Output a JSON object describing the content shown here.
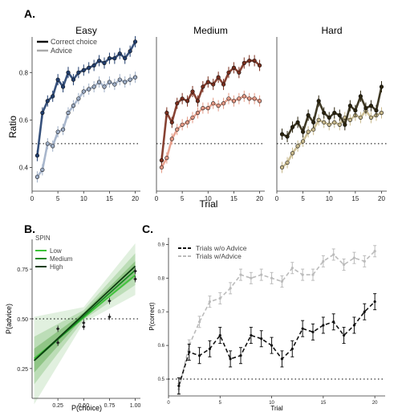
{
  "panel_labels": {
    "a": "A.",
    "b": "B.",
    "c": "C."
  },
  "chart_data": [
    {
      "panel": "A",
      "type": "line",
      "ylabel": "Ratio",
      "xlabel": "Trial",
      "xlim": [
        0,
        21
      ],
      "ylim": [
        0.3,
        0.95
      ],
      "xticks": [
        "0",
        "5",
        "10",
        "15",
        "20"
      ],
      "yticks": [
        "0.4",
        "0.6",
        "0.8"
      ],
      "chance_line": 0.5,
      "legend": [
        "Correct choice",
        "Advice"
      ],
      "subplots": [
        {
          "title": "Easy",
          "color_choice": "#213e6e",
          "color_advice": "#9eaec6",
          "x": [
            1,
            2,
            3,
            4,
            5,
            6,
            7,
            8,
            9,
            10,
            11,
            12,
            13,
            14,
            15,
            16,
            17,
            18,
            19,
            20
          ],
          "correct_choice": [
            0.45,
            0.63,
            0.68,
            0.7,
            0.77,
            0.74,
            0.8,
            0.77,
            0.8,
            0.81,
            0.82,
            0.83,
            0.85,
            0.84,
            0.86,
            0.86,
            0.88,
            0.86,
            0.89,
            0.93
          ],
          "advice": [
            0.36,
            0.39,
            0.5,
            0.49,
            0.55,
            0.56,
            0.63,
            0.66,
            0.69,
            0.72,
            0.73,
            0.74,
            0.76,
            0.74,
            0.76,
            0.75,
            0.77,
            0.76,
            0.77,
            0.78
          ]
        },
        {
          "title": "Medium",
          "color_choice": "#7a2e1d",
          "color_advice": "#e59a86",
          "x": [
            1,
            2,
            3,
            4,
            5,
            6,
            7,
            8,
            9,
            10,
            11,
            12,
            13,
            14,
            15,
            16,
            17,
            18,
            19,
            20
          ],
          "correct_choice": [
            0.43,
            0.63,
            0.59,
            0.67,
            0.69,
            0.68,
            0.72,
            0.68,
            0.74,
            0.76,
            0.75,
            0.78,
            0.75,
            0.8,
            0.82,
            0.8,
            0.84,
            0.85,
            0.85,
            0.83
          ],
          "advice": [
            0.4,
            0.44,
            0.52,
            0.56,
            0.58,
            0.59,
            0.61,
            0.63,
            0.65,
            0.65,
            0.67,
            0.66,
            0.67,
            0.69,
            0.68,
            0.69,
            0.7,
            0.69,
            0.69,
            0.68
          ]
        },
        {
          "title": "Hard",
          "color_choice": "#2a230d",
          "color_advice": "#c8b98c",
          "x": [
            1,
            2,
            3,
            4,
            5,
            6,
            7,
            8,
            9,
            10,
            11,
            12,
            13,
            14,
            15,
            16,
            17,
            18,
            19,
            20
          ],
          "correct_choice": [
            0.54,
            0.53,
            0.57,
            0.59,
            0.55,
            0.62,
            0.59,
            0.68,
            0.63,
            0.61,
            0.63,
            0.62,
            0.58,
            0.66,
            0.64,
            0.7,
            0.65,
            0.66,
            0.64,
            0.74
          ],
          "advice": [
            0.4,
            0.42,
            0.46,
            0.49,
            0.51,
            0.55,
            0.56,
            0.6,
            0.59,
            0.58,
            0.59,
            0.58,
            0.61,
            0.6,
            0.62,
            0.61,
            0.64,
            0.61,
            0.62,
            0.63
          ]
        }
      ]
    },
    {
      "panel": "B",
      "type": "line",
      "xlabel": "P(choice)",
      "ylabel": "P(advice)",
      "xlim": [
        0,
        1.05
      ],
      "ylim": [
        0.1,
        0.9
      ],
      "xticks": [
        "0.25",
        "0.50",
        "0.75",
        "1.00"
      ],
      "yticks": [
        "0.25",
        "0.50",
        "0.75"
      ],
      "chance_line": 0.5,
      "legend_title": "SPIN",
      "series": [
        {
          "name": "Low",
          "color": "#3ec43a",
          "x": [
            0.02,
            1.0
          ],
          "y": [
            0.3,
            0.72
          ]
        },
        {
          "name": "Medium",
          "color": "#1b8a24",
          "x": [
            0.02,
            1.0
          ],
          "y": [
            0.29,
            0.745
          ]
        },
        {
          "name": "High",
          "color": "#0d3d10",
          "x": [
            0.02,
            1.0
          ],
          "y": [
            0.29,
            0.765
          ]
        }
      ],
      "points": [
        {
          "x": 0.25,
          "y": 0.45
        },
        {
          "x": 0.25,
          "y": 0.38
        },
        {
          "x": 0.5,
          "y": 0.48
        },
        {
          "x": 0.5,
          "y": 0.46
        },
        {
          "x": 0.75,
          "y": 0.59
        },
        {
          "x": 0.75,
          "y": 0.51
        },
        {
          "x": 1.0,
          "y": 0.74
        },
        {
          "x": 1.0,
          "y": 0.7
        }
      ]
    },
    {
      "panel": "C",
      "type": "line",
      "xlabel": "Trial",
      "ylabel": "P(correct)",
      "xlim": [
        0,
        21
      ],
      "ylim": [
        0.45,
        0.92
      ],
      "xticks": [
        "0",
        "5",
        "10",
        "15",
        "20"
      ],
      "yticks": [
        "0.5",
        "0.6",
        "0.7",
        "0.8",
        "0.9"
      ],
      "chance_line": 0.5,
      "series": [
        {
          "name": "Trials w/o Advice",
          "color": "#111111",
          "x": [
            1,
            2,
            3,
            4,
            5,
            6,
            7,
            8,
            9,
            10,
            11,
            12,
            13,
            14,
            15,
            16,
            17,
            18,
            19,
            20
          ],
          "y": [
            0.48,
            0.58,
            0.57,
            0.59,
            0.63,
            0.56,
            0.57,
            0.63,
            0.62,
            0.6,
            0.56,
            0.59,
            0.65,
            0.64,
            0.66,
            0.67,
            0.63,
            0.66,
            0.7,
            0.73
          ]
        },
        {
          "name": "Trials w/Advice",
          "color": "#bbbbbb",
          "x": [
            1,
            2,
            3,
            4,
            5,
            6,
            7,
            8,
            9,
            10,
            11,
            12,
            13,
            14,
            15,
            16,
            17,
            18,
            19,
            20
          ],
          "y": [
            0.47,
            0.6,
            0.67,
            0.73,
            0.74,
            0.77,
            0.81,
            0.8,
            0.81,
            0.8,
            0.79,
            0.83,
            0.81,
            0.81,
            0.85,
            0.87,
            0.84,
            0.86,
            0.85,
            0.88
          ]
        }
      ]
    }
  ]
}
